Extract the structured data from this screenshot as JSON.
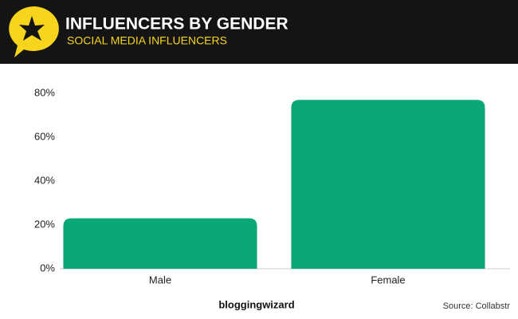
{
  "chart_data": {
    "type": "bar",
    "title": "INFLUENCERS BY GENDER",
    "subtitle": "SOCIAL MEDIA INFLUENCERS",
    "categories": [
      "Male",
      "Female"
    ],
    "values": [
      23,
      77
    ],
    "color": "#0aa878",
    "ylim": [
      0,
      80
    ],
    "yticks": [
      {
        "value": 0,
        "label": "0%"
      },
      {
        "value": 20,
        "label": "20%"
      },
      {
        "value": 40,
        "label": "40%"
      },
      {
        "value": 60,
        "label": "60%"
      },
      {
        "value": 80,
        "label": "80%"
      }
    ],
    "grid": false,
    "brand": "bloggingwizard",
    "source": "Source: Collabstr"
  }
}
